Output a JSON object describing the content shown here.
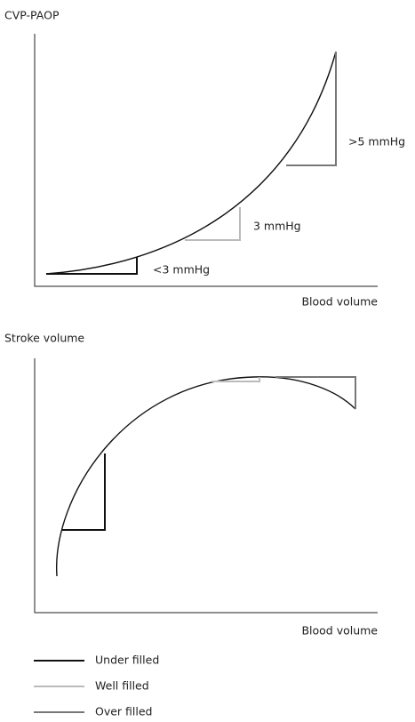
{
  "top_chart": {
    "y_label": "CVP-PAOP",
    "x_label": "Blood volume",
    "annotations": [
      ">5 mmHg",
      "3 mmHg",
      "<3 mmHg"
    ]
  },
  "bottom_chart": {
    "y_label": "Stroke volume",
    "x_label": "Blood volume"
  },
  "legend": [
    "Under filled",
    "Well filled",
    "Over filled"
  ]
}
